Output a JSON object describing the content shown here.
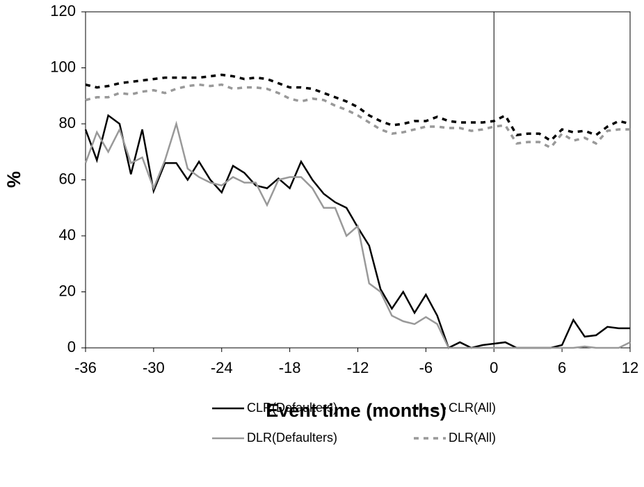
{
  "chart_data": {
    "type": "line",
    "x_label": "Event time (months)",
    "y_label": "%",
    "x": [
      -36,
      -35,
      -34,
      -33,
      -32,
      -31,
      -30,
      -29,
      -28,
      -27,
      -26,
      -25,
      -24,
      -23,
      -22,
      -21,
      -20,
      -19,
      -18,
      -17,
      -16,
      -15,
      -14,
      -13,
      -12,
      -11,
      -10,
      -9,
      -8,
      -7,
      -6,
      -5,
      -4,
      -3,
      -2,
      -1,
      0,
      1,
      2,
      3,
      4,
      5,
      6,
      7,
      8,
      9,
      10,
      11,
      12
    ],
    "xlim": [
      -36,
      12
    ],
    "xticks": [
      -36,
      -30,
      -24,
      -18,
      -12,
      -6,
      0,
      6,
      12
    ],
    "ylim": [
      0,
      120
    ],
    "yticks": [
      0,
      20,
      40,
      60,
      80,
      100,
      120
    ],
    "vline": 0,
    "series": [
      {
        "name": "CLR(Defaulters)",
        "color": "#000000",
        "style": "solid",
        "values": [
          78,
          67,
          83,
          80,
          62,
          78,
          56,
          66,
          66,
          60,
          66.5,
          60,
          55.5,
          65,
          62.5,
          58,
          57,
          60.5,
          57,
          66.5,
          60,
          55,
          52,
          50,
          43,
          36.5,
          21,
          14,
          20,
          12.5,
          19,
          11.5,
          0,
          2,
          0,
          1,
          1.5,
          2,
          0,
          0,
          0,
          0,
          1,
          10,
          4,
          4.5,
          7.5,
          7,
          7
        ]
      },
      {
        "name": "CLR(All)",
        "color": "#000000",
        "style": "dashed",
        "values": [
          94,
          93,
          93.5,
          94.5,
          95,
          95.5,
          96,
          96.5,
          96.5,
          96.5,
          96.5,
          97,
          97.5,
          97,
          96,
          96.5,
          96,
          94.5,
          93,
          93,
          92.5,
          91,
          89.5,
          88,
          86,
          83,
          81,
          79.5,
          80,
          81,
          81,
          82.5,
          81,
          80.5,
          80.5,
          80.5,
          81,
          83,
          76,
          76.5,
          76.5,
          74,
          78,
          77,
          77.5,
          76,
          79,
          81,
          80
        ]
      },
      {
        "name": "DLR(Defaulters)",
        "color": "#999999",
        "style": "solid",
        "values": [
          66,
          77,
          70,
          78,
          66,
          68,
          57,
          67,
          80,
          64,
          61,
          59,
          58,
          61,
          59,
          59,
          51,
          60,
          61,
          61,
          57,
          50,
          50,
          40,
          43.5,
          23,
          20,
          11.5,
          9.5,
          8.5,
          11,
          8.5,
          0,
          0,
          0,
          0,
          0,
          0,
          0,
          0,
          0,
          0,
          0,
          0,
          0.5,
          0,
          0,
          0,
          2
        ]
      },
      {
        "name": "DLR(All)",
        "color": "#999999",
        "style": "dashed",
        "values": [
          88.5,
          89.5,
          89.5,
          91,
          90.5,
          91.5,
          92,
          91,
          92.5,
          93.5,
          94,
          93.5,
          94,
          92.5,
          93,
          93,
          92.5,
          91,
          89,
          88,
          89,
          88.5,
          86.5,
          85,
          83,
          80.5,
          78,
          76.5,
          77,
          78,
          79,
          79,
          78.5,
          78.5,
          77.5,
          78,
          79,
          79.5,
          73,
          73.5,
          73.5,
          71.5,
          76.5,
          74,
          75,
          73,
          77.5,
          78,
          78
        ]
      }
    ]
  }
}
